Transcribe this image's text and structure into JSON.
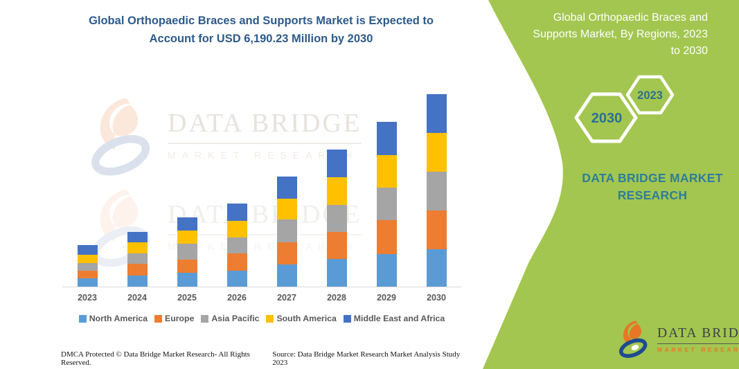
{
  "title": {
    "line1": "Global Orthopaedic Braces and Supports Market is Expected to",
    "line2": "Account for USD 6,190.23 Million by 2030"
  },
  "panel": {
    "heading_lines": [
      "Global Orthopaedic Braces and",
      "Supports Market, By Regions, 2023",
      "to 2030"
    ],
    "hexagon_large": "2030",
    "hexagon_small": "2023",
    "brand_line1": "DATA BRIDGE MARKET",
    "brand_line2": "RESEARCH",
    "green_color": "#A3C650",
    "hex_number_color": "#2C6F91",
    "brand_text_color": "#2E7D99"
  },
  "watermark": {
    "brand": "DATA BRIDGE",
    "sub": "MARKET RESEARCH"
  },
  "logo": {
    "brand": "DATA BRIDGE",
    "sub": "MARKET RESEARCH"
  },
  "footer": {
    "left": "DMCA Protected © Data Bridge Market Research-  All Rights Reserved.",
    "right": "Source: Data Bridge Market Research  Market Analysis Study 2023"
  },
  "chart_data": {
    "type": "bar",
    "stacked": true,
    "title": "Global Orthopaedic Braces and Supports Market, By Regions, 2023 to 2030",
    "units": "USD Million",
    "categories": [
      "2023",
      "2024",
      "2025",
      "2026",
      "2027",
      "2028",
      "2029",
      "2030"
    ],
    "series": [
      {
        "name": "North America",
        "color": "#5B9BD5",
        "values": [
          260,
          350,
          450,
          520,
          710,
          900,
          1050,
          1210
        ]
      },
      {
        "name": "Europe",
        "color": "#ED7D31",
        "values": [
          250,
          395,
          425,
          540,
          710,
          860,
          1080,
          1235
        ]
      },
      {
        "name": "Asia Pacific",
        "color": "#A5A5A5",
        "values": [
          255,
          335,
          510,
          525,
          730,
          860,
          1060,
          1250
        ]
      },
      {
        "name": "South America",
        "color": "#FFC000",
        "values": [
          270,
          350,
          410,
          525,
          675,
          900,
          1040,
          1255
        ]
      },
      {
        "name": "Middle East and Africa",
        "color": "#4472C4",
        "values": [
          305,
          330,
          425,
          555,
          725,
          900,
          1070,
          1240
        ]
      }
    ],
    "totals": [
      1340,
      1760,
      2220,
      2665,
      3550,
      4420,
      5300,
      6190
    ],
    "ylim": [
      0,
      6190
    ],
    "xlabel": "",
    "ylabel": "",
    "gridlines": false,
    "y_axis_visible": false,
    "legend_position": "bottom"
  }
}
